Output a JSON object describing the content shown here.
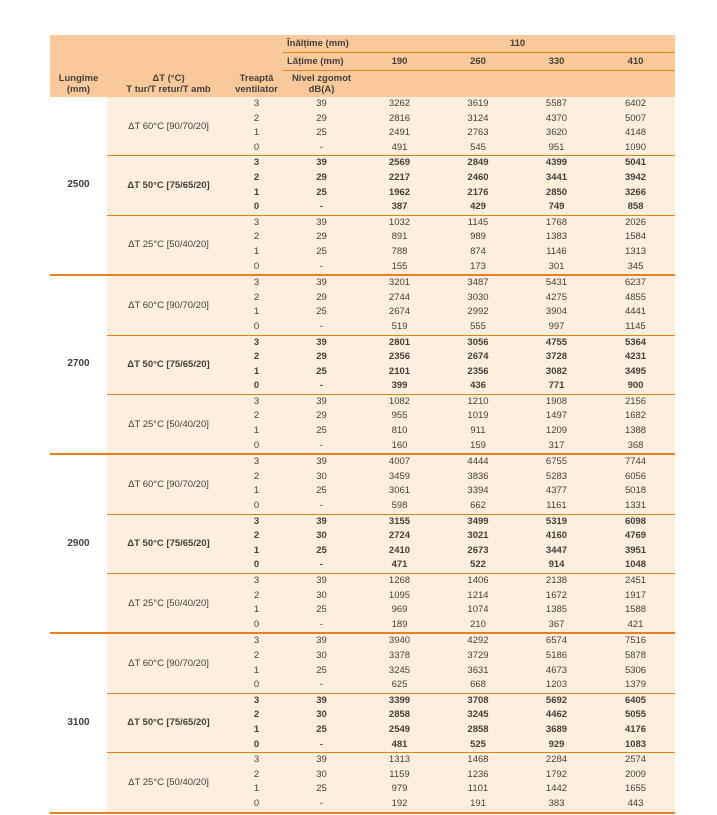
{
  "colors": {
    "header_bg": "#f9c99c",
    "body_bg": "#fcefde",
    "first_col_bg": "#ffffff",
    "line_orange": "#e8811c",
    "text": "#453e39",
    "page_bg": "#ffffff"
  },
  "table": {
    "header": {
      "inaltime_label": "Înălțime (mm)",
      "inaltime_value": "110",
      "latime_label": "Lățime (mm)",
      "widths": [
        "190",
        "260",
        "330",
        "410"
      ],
      "col_lungime_line1": "Lungime",
      "col_lungime_line2": "(mm)",
      "col_dt_line1": "ΔT (°C)",
      "col_dt_line2": "T tur/T retur/T amb",
      "col_treapta_line1": "Treaptă",
      "col_treapta_line2": "ventilator",
      "col_zgomot_line1": "Nivel zgomot",
      "col_zgomot_line2": "dB(A)"
    },
    "groups": [
      {
        "lungime": "2500",
        "subgroups": [
          {
            "dt": "ΔT 60°C [90/70/20]",
            "bold": false,
            "rows": [
              [
                "3",
                "39",
                "3262",
                "3619",
                "5587",
                "6402"
              ],
              [
                "2",
                "29",
                "2816",
                "3124",
                "4370",
                "5007"
              ],
              [
                "1",
                "25",
                "2491",
                "2763",
                "3620",
                "4148"
              ],
              [
                "0",
                "-",
                "491",
                "545",
                "951",
                "1090"
              ]
            ]
          },
          {
            "dt": "ΔT 50°C [75/65/20]",
            "bold": true,
            "rows": [
              [
                "3",
                "39",
                "2569",
                "2849",
                "4399",
                "5041"
              ],
              [
                "2",
                "29",
                "2217",
                "2460",
                "3441",
                "3942"
              ],
              [
                "1",
                "25",
                "1962",
                "2176",
                "2850",
                "3266"
              ],
              [
                "0",
                "-",
                "387",
                "429",
                "749",
                "858"
              ]
            ]
          },
          {
            "dt": "ΔT 25°C [50/40/20]",
            "bold": false,
            "rows": [
              [
                "3",
                "39",
                "1032",
                "1145",
                "1768",
                "2026"
              ],
              [
                "2",
                "29",
                "891",
                "989",
                "1383",
                "1584"
              ],
              [
                "1",
                "25",
                "788",
                "874",
                "1146",
                "1313"
              ],
              [
                "0",
                "-",
                "155",
                "173",
                "301",
                "345"
              ]
            ]
          }
        ]
      },
      {
        "lungime": "2700",
        "subgroups": [
          {
            "dt": "ΔT 60°C [90/70/20]",
            "bold": false,
            "rows": [
              [
                "3",
                "39",
                "3201",
                "3487",
                "5431",
                "6237"
              ],
              [
                "2",
                "29",
                "2744",
                "3030",
                "4275",
                "4855"
              ],
              [
                "1",
                "25",
                "2674",
                "2992",
                "3904",
                "4441"
              ],
              [
                "0",
                "-",
                "519",
                "555",
                "997",
                "1145"
              ]
            ]
          },
          {
            "dt": "ΔT 50°C [75/65/20]",
            "bold": true,
            "rows": [
              [
                "3",
                "39",
                "2801",
                "3056",
                "4755",
                "5364"
              ],
              [
                "2",
                "29",
                "2356",
                "2674",
                "3728",
                "4231"
              ],
              [
                "1",
                "25",
                "2101",
                "2356",
                "3082",
                "3495"
              ],
              [
                "0",
                "-",
                "399",
                "436",
                "771",
                "900"
              ]
            ]
          },
          {
            "dt": "ΔT 25°C [50/40/20]",
            "bold": false,
            "rows": [
              [
                "3",
                "39",
                "1082",
                "1210",
                "1908",
                "2156"
              ],
              [
                "2",
                "29",
                "955",
                "1019",
                "1497",
                "1682"
              ],
              [
                "1",
                "25",
                "810",
                "911",
                "1209",
                "1388"
              ],
              [
                "0",
                "-",
                "160",
                "159",
                "317",
                "368"
              ]
            ]
          }
        ]
      },
      {
        "lungime": "2900",
        "subgroups": [
          {
            "dt": "ΔT 60°C [90/70/20]",
            "bold": false,
            "rows": [
              [
                "3",
                "39",
                "4007",
                "4444",
                "6755",
                "7744"
              ],
              [
                "2",
                "30",
                "3459",
                "3836",
                "5283",
                "6056"
              ],
              [
                "1",
                "25",
                "3061",
                "3394",
                "4377",
                "5018"
              ],
              [
                "0",
                "-",
                "598",
                "662",
                "1161",
                "1331"
              ]
            ]
          },
          {
            "dt": "ΔT 50°C [75/65/20]",
            "bold": true,
            "rows": [
              [
                "3",
                "39",
                "3155",
                "3499",
                "5319",
                "6098"
              ],
              [
                "2",
                "30",
                "2724",
                "3021",
                "4160",
                "4769"
              ],
              [
                "1",
                "25",
                "2410",
                "2673",
                "3447",
                "3951"
              ],
              [
                "0",
                "-",
                "471",
                "522",
                "914",
                "1048"
              ]
            ]
          },
          {
            "dt": "ΔT 25°C [50/40/20]",
            "bold": false,
            "rows": [
              [
                "3",
                "39",
                "1268",
                "1406",
                "2138",
                "2451"
              ],
              [
                "2",
                "30",
                "1095",
                "1214",
                "1672",
                "1917"
              ],
              [
                "1",
                "25",
                "969",
                "1074",
                "1385",
                "1588"
              ],
              [
                "0",
                "-",
                "189",
                "210",
                "367",
                "421"
              ]
            ]
          }
        ]
      },
      {
        "lungime": "3100",
        "subgroups": [
          {
            "dt": "ΔT 60°C [90/70/20]",
            "bold": false,
            "rows": [
              [
                "3",
                "39",
                "3940",
                "4292",
                "6574",
                "7516"
              ],
              [
                "2",
                "30",
                "3378",
                "3729",
                "5186",
                "5878"
              ],
              [
                "1",
                "25",
                "3245",
                "3631",
                "4673",
                "5306"
              ],
              [
                "0",
                "-",
                "625",
                "668",
                "1203",
                "1379"
              ]
            ]
          },
          {
            "dt": "ΔT 50°C [75/65/20]",
            "bold": true,
            "rows": [
              [
                "3",
                "39",
                "3399",
                "3708",
                "5692",
                "6405"
              ],
              [
                "2",
                "30",
                "2858",
                "3245",
                "4462",
                "5055"
              ],
              [
                "1",
                "25",
                "2549",
                "2858",
                "3689",
                "4176"
              ],
              [
                "0",
                "-",
                "481",
                "525",
                "929",
                "1083"
              ]
            ]
          },
          {
            "dt": "ΔT 25°C [50/40/20]",
            "bold": false,
            "rows": [
              [
                "3",
                "39",
                "1313",
                "1468",
                "2284",
                "2574"
              ],
              [
                "2",
                "30",
                "1159",
                "1236",
                "1792",
                "2009"
              ],
              [
                "1",
                "25",
                "979",
                "1101",
                "1442",
                "1655"
              ],
              [
                "0",
                "-",
                "192",
                "191",
                "383",
                "443"
              ]
            ]
          }
        ]
      }
    ]
  }
}
